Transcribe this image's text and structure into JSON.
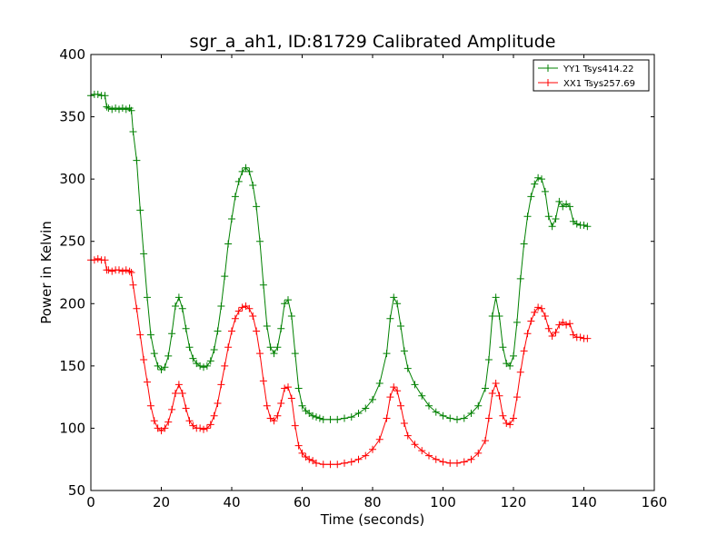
{
  "chart_data": {
    "type": "line",
    "title": "sgr_a_ah1, ID:81729 Calibrated Amplitude",
    "xlabel": "Time (seconds)",
    "ylabel": "Power in Kelvin",
    "xlim": [
      0,
      160
    ],
    "ylim": [
      50,
      400
    ],
    "xticks": [
      "0",
      "20",
      "40",
      "60",
      "80",
      "100",
      "120",
      "140",
      "160"
    ],
    "yticks": [
      "50",
      "100",
      "150",
      "200",
      "250",
      "300",
      "350",
      "400"
    ],
    "grid": false,
    "legend_position": "top-right",
    "marker": "+",
    "series": [
      {
        "name": "YY1 Tsys414.22",
        "color": "#008000",
        "points": [
          [
            0,
            367
          ],
          [
            1,
            368
          ],
          [
            2,
            368
          ],
          [
            3,
            367
          ],
          [
            4,
            367
          ],
          [
            4.5,
            358
          ],
          [
            5,
            357
          ],
          [
            6,
            356
          ],
          [
            7,
            357
          ],
          [
            8,
            356
          ],
          [
            9,
            357
          ],
          [
            10,
            356
          ],
          [
            11,
            357
          ],
          [
            11.5,
            355
          ],
          [
            12,
            338
          ],
          [
            13,
            315
          ],
          [
            14,
            275
          ],
          [
            15,
            240
          ],
          [
            16,
            205
          ],
          [
            17,
            175
          ],
          [
            18,
            160
          ],
          [
            19,
            150
          ],
          [
            20,
            147
          ],
          [
            21,
            149
          ],
          [
            22,
            158
          ],
          [
            23,
            176
          ],
          [
            24,
            198
          ],
          [
            25,
            205
          ],
          [
            26,
            196
          ],
          [
            27,
            180
          ],
          [
            28,
            165
          ],
          [
            29,
            156
          ],
          [
            30,
            152
          ],
          [
            31,
            150
          ],
          [
            32,
            149
          ],
          [
            33,
            150
          ],
          [
            34,
            154
          ],
          [
            35,
            163
          ],
          [
            36,
            178
          ],
          [
            37,
            198
          ],
          [
            38,
            222
          ],
          [
            39,
            248
          ],
          [
            40,
            268
          ],
          [
            41,
            286
          ],
          [
            42,
            298
          ],
          [
            43,
            306
          ],
          [
            44,
            309
          ],
          [
            45,
            306
          ],
          [
            46,
            295
          ],
          [
            47,
            278
          ],
          [
            48,
            250
          ],
          [
            49,
            215
          ],
          [
            50,
            182
          ],
          [
            51,
            165
          ],
          [
            52,
            160
          ],
          [
            53,
            165
          ],
          [
            54,
            180
          ],
          [
            55,
            200
          ],
          [
            56,
            203
          ],
          [
            57,
            190
          ],
          [
            58,
            160
          ],
          [
            59,
            132
          ],
          [
            60,
            118
          ],
          [
            61,
            114
          ],
          [
            62,
            112
          ],
          [
            63,
            110
          ],
          [
            64,
            109
          ],
          [
            65,
            108
          ],
          [
            66,
            107
          ],
          [
            68,
            107
          ],
          [
            70,
            107
          ],
          [
            72,
            108
          ],
          [
            74,
            109
          ],
          [
            76,
            112
          ],
          [
            78,
            116
          ],
          [
            80,
            123
          ],
          [
            82,
            136
          ],
          [
            84,
            160
          ],
          [
            85,
            188
          ],
          [
            86,
            205
          ],
          [
            87,
            200
          ],
          [
            88,
            182
          ],
          [
            89,
            162
          ],
          [
            90,
            148
          ],
          [
            92,
            135
          ],
          [
            94,
            126
          ],
          [
            96,
            118
          ],
          [
            98,
            113
          ],
          [
            100,
            110
          ],
          [
            102,
            108
          ],
          [
            104,
            107
          ],
          [
            106,
            108
          ],
          [
            108,
            112
          ],
          [
            110,
            118
          ],
          [
            112,
            132
          ],
          [
            113,
            155
          ],
          [
            114,
            190
          ],
          [
            115,
            205
          ],
          [
            116,
            190
          ],
          [
            117,
            165
          ],
          [
            118,
            152
          ],
          [
            119,
            150
          ],
          [
            120,
            158
          ],
          [
            121,
            185
          ],
          [
            122,
            220
          ],
          [
            123,
            248
          ],
          [
            124,
            270
          ],
          [
            125,
            286
          ],
          [
            126,
            296
          ],
          [
            127,
            301
          ],
          [
            128,
            300
          ],
          [
            129,
            290
          ],
          [
            130,
            270
          ],
          [
            131,
            262
          ],
          [
            132,
            268
          ],
          [
            133,
            282
          ],
          [
            134,
            278
          ],
          [
            135,
            280
          ],
          [
            136,
            278
          ],
          [
            137,
            266
          ],
          [
            138,
            264
          ],
          [
            139,
            263
          ],
          [
            140,
            263
          ],
          [
            141,
            262
          ]
        ]
      },
      {
        "name": "XX1 Tsys257.69",
        "color": "#ff0000",
        "points": [
          [
            0,
            235
          ],
          [
            1,
            235
          ],
          [
            2,
            236
          ],
          [
            3,
            235
          ],
          [
            4,
            235
          ],
          [
            4.5,
            227
          ],
          [
            5,
            227
          ],
          [
            6,
            226
          ],
          [
            7,
            227
          ],
          [
            8,
            227
          ],
          [
            9,
            226
          ],
          [
            10,
            227
          ],
          [
            11,
            226
          ],
          [
            11.5,
            225
          ],
          [
            12,
            215
          ],
          [
            13,
            196
          ],
          [
            14,
            175
          ],
          [
            15,
            155
          ],
          [
            16,
            137
          ],
          [
            17,
            118
          ],
          [
            18,
            106
          ],
          [
            19,
            100
          ],
          [
            20,
            98
          ],
          [
            21,
            100
          ],
          [
            22,
            105
          ],
          [
            23,
            115
          ],
          [
            24,
            128
          ],
          [
            25,
            135
          ],
          [
            26,
            128
          ],
          [
            27,
            116
          ],
          [
            28,
            106
          ],
          [
            29,
            102
          ],
          [
            30,
            100
          ],
          [
            31,
            100
          ],
          [
            32,
            99
          ],
          [
            33,
            100
          ],
          [
            34,
            103
          ],
          [
            35,
            110
          ],
          [
            36,
            120
          ],
          [
            37,
            135
          ],
          [
            38,
            150
          ],
          [
            39,
            165
          ],
          [
            40,
            178
          ],
          [
            41,
            188
          ],
          [
            42,
            194
          ],
          [
            43,
            197
          ],
          [
            44,
            198
          ],
          [
            45,
            196
          ],
          [
            46,
            190
          ],
          [
            47,
            178
          ],
          [
            48,
            160
          ],
          [
            49,
            138
          ],
          [
            50,
            118
          ],
          [
            51,
            108
          ],
          [
            52,
            106
          ],
          [
            53,
            110
          ],
          [
            54,
            120
          ],
          [
            55,
            132
          ],
          [
            56,
            133
          ],
          [
            57,
            124
          ],
          [
            58,
            102
          ],
          [
            59,
            86
          ],
          [
            60,
            80
          ],
          [
            61,
            77
          ],
          [
            62,
            75
          ],
          [
            63,
            74
          ],
          [
            64,
            72
          ],
          [
            66,
            71
          ],
          [
            68,
            71
          ],
          [
            70,
            71
          ],
          [
            72,
            72
          ],
          [
            74,
            73
          ],
          [
            76,
            75
          ],
          [
            78,
            78
          ],
          [
            80,
            83
          ],
          [
            82,
            91
          ],
          [
            84,
            108
          ],
          [
            85,
            125
          ],
          [
            86,
            133
          ],
          [
            87,
            130
          ],
          [
            88,
            118
          ],
          [
            89,
            104
          ],
          [
            90,
            94
          ],
          [
            92,
            87
          ],
          [
            94,
            82
          ],
          [
            96,
            78
          ],
          [
            98,
            75
          ],
          [
            100,
            73
          ],
          [
            102,
            72
          ],
          [
            104,
            72
          ],
          [
            106,
            73
          ],
          [
            108,
            75
          ],
          [
            110,
            80
          ],
          [
            112,
            90
          ],
          [
            113,
            108
          ],
          [
            114,
            128
          ],
          [
            115,
            136
          ],
          [
            116,
            126
          ],
          [
            117,
            110
          ],
          [
            118,
            104
          ],
          [
            119,
            103
          ],
          [
            120,
            108
          ],
          [
            121,
            125
          ],
          [
            122,
            145
          ],
          [
            123,
            162
          ],
          [
            124,
            176
          ],
          [
            125,
            186
          ],
          [
            126,
            193
          ],
          [
            127,
            197
          ],
          [
            128,
            196
          ],
          [
            129,
            190
          ],
          [
            130,
            180
          ],
          [
            131,
            174
          ],
          [
            132,
            177
          ],
          [
            133,
            183
          ],
          [
            134,
            185
          ],
          [
            135,
            183
          ],
          [
            136,
            184
          ],
          [
            137,
            175
          ],
          [
            138,
            173
          ],
          [
            139,
            173
          ],
          [
            140,
            172
          ],
          [
            141,
            172
          ]
        ]
      }
    ]
  }
}
